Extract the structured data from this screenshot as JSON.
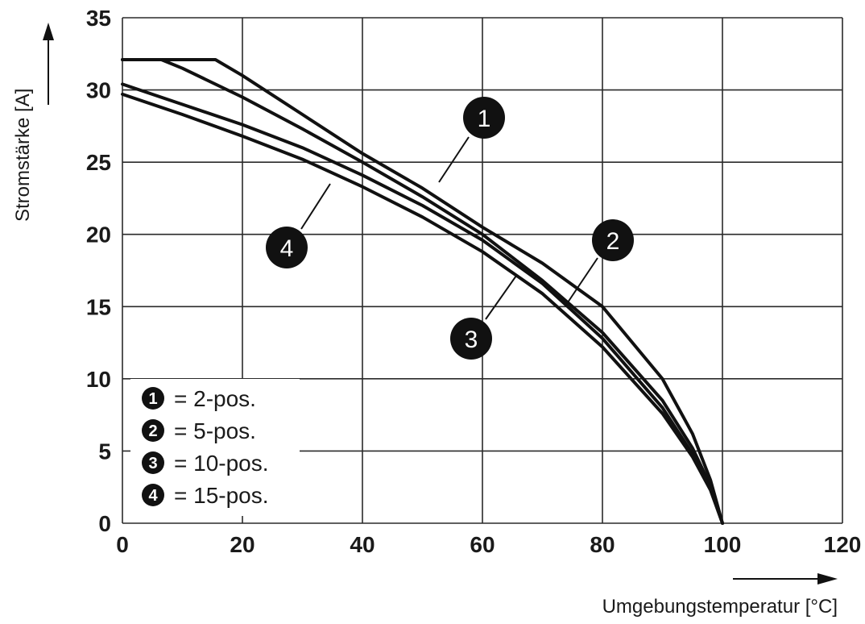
{
  "chart_data": {
    "type": "line",
    "xlabel": "Umgebungstemperatur [°C]",
    "ylabel": "Stromstärke [A]",
    "xlim": [
      0,
      120
    ],
    "ylim": [
      0,
      35
    ],
    "xticks": [
      0,
      20,
      40,
      60,
      80,
      100,
      120
    ],
    "yticks": [
      0,
      5,
      10,
      15,
      20,
      25,
      30,
      35
    ],
    "grid": true,
    "legend_position": "bottom-left",
    "series": [
      {
        "badge": "1",
        "legend_label": "= 2-pos.",
        "x": [
          0,
          15.5,
          20,
          30,
          40,
          50,
          60,
          70,
          80,
          90,
          95,
          98,
          100
        ],
        "y": [
          32.1,
          32.1,
          31.0,
          28.3,
          25.6,
          23.2,
          20.5,
          18.0,
          15.0,
          10.0,
          6.2,
          3.0,
          0
        ]
      },
      {
        "badge": "2",
        "legend_label": "= 5-pos.",
        "x": [
          0,
          6.5,
          10,
          20,
          30,
          40,
          50,
          60,
          70,
          80,
          90,
          95,
          98,
          100
        ],
        "y": [
          32.1,
          32.1,
          31.5,
          29.5,
          27.3,
          25.0,
          22.6,
          20.0,
          16.8,
          13.2,
          8.5,
          5.2,
          2.6,
          0
        ]
      },
      {
        "badge": "3",
        "legend_label": "= 10-pos.",
        "x": [
          0,
          10,
          20,
          30,
          40,
          50,
          60,
          70,
          80,
          90,
          95,
          98,
          100
        ],
        "y": [
          30.4,
          29.0,
          27.6,
          26.0,
          24.1,
          22.0,
          19.6,
          16.6,
          12.8,
          8.0,
          4.8,
          2.4,
          0
        ]
      },
      {
        "badge": "4",
        "legend_label": "= 15-pos.",
        "x": [
          0,
          10,
          20,
          30,
          40,
          50,
          60,
          70,
          80,
          90,
          95,
          98,
          100
        ],
        "y": [
          29.7,
          28.3,
          26.8,
          25.2,
          23.3,
          21.2,
          18.8,
          15.9,
          12.2,
          7.6,
          4.6,
          2.3,
          0
        ]
      }
    ]
  }
}
